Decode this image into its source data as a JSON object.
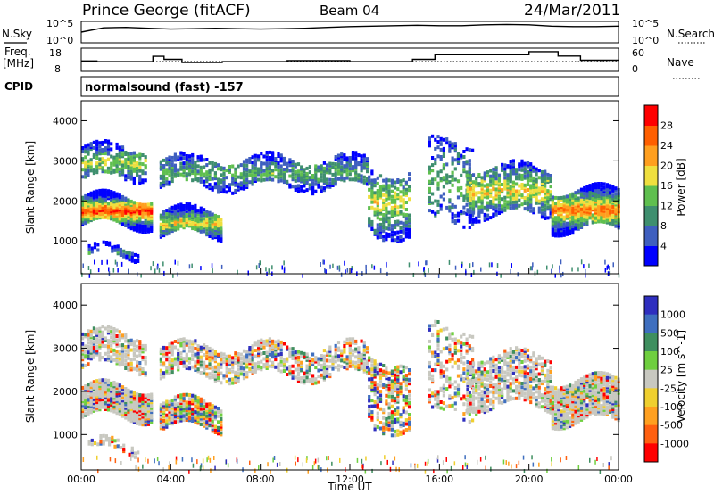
{
  "header": {
    "station": "Prince George (fitACF)",
    "beam": "Beam 04",
    "date": "24/Mar/2011"
  },
  "noise_panel": {
    "left_label": "N.Sky",
    "left_ticks": [
      "10^5",
      "10^0"
    ],
    "right_label": "N.Search",
    "right_ticks": [
      "10^5",
      "10^0"
    ]
  },
  "freq_panel": {
    "left_label_1": "Freq.",
    "left_label_2": "[MHz]",
    "left_ticks": [
      "18",
      "8"
    ],
    "right_label": "Nave",
    "right_ticks": [
      "60",
      "0"
    ]
  },
  "cpid": {
    "label": "CPID",
    "value": "normalsound (fast) -157"
  },
  "colors": {
    "power_scale": [
      "#0000ff",
      "#3f5fbf",
      "#3f8f6f",
      "#5fbf4f",
      "#efdf3f",
      "#ff9f1f",
      "#ff5f00",
      "#ff0000"
    ],
    "velocity_scale": [
      "#2f2fbf",
      "#3f6fbf",
      "#3f8f5f",
      "#6fcf3f",
      "#c8c8c0",
      "#efcf2f",
      "#ffa020",
      "#ff6010",
      "#ff0000"
    ]
  },
  "chart_data": [
    {
      "type": "line",
      "title": "Prince George (fitACF) Beam 04 24/Mar/2011",
      "series": [
        {
          "name": "N.Sky",
          "x": [
            0,
            1,
            2,
            3,
            4,
            5,
            6,
            7,
            8,
            9,
            10,
            11,
            12,
            13,
            14,
            15,
            16,
            17,
            18,
            19,
            20,
            21,
            22,
            23,
            24
          ],
          "values": [
            2.5,
            3.5,
            3.6,
            3.4,
            3.2,
            3.3,
            3.4,
            3.3,
            3.2,
            3.3,
            3.4,
            3.6,
            3.8,
            3.9,
            4.0,
            4.1,
            4.0,
            4.0,
            4.2,
            4.3,
            4.2,
            3.9,
            3.8,
            3.8,
            3.9
          ]
        }
      ],
      "ylabel": "N.Sky",
      "ylim": [
        0,
        5
      ]
    },
    {
      "type": "line",
      "series": [
        {
          "name": "Freq.",
          "x": [
            0,
            0.7,
            0.7,
            3.2,
            3.2,
            3.7,
            3.7,
            4.5,
            4.5,
            6.3,
            6.3,
            9.2,
            9.2,
            12.0,
            12.0,
            14.8,
            14.8,
            15.8,
            15.8,
            20.0,
            20.0,
            21.3,
            21.3,
            22.3,
            22.3,
            24
          ],
          "values": [
            12.5,
            12.5,
            12.2,
            12.2,
            14.5,
            14.5,
            13.2,
            13.2,
            11.8,
            11.8,
            12.2,
            12.2,
            12.6,
            12.6,
            12.2,
            12.2,
            13.2,
            13.2,
            15.2,
            15.2,
            16.5,
            16.5,
            14.6,
            14.6,
            12.8,
            12.8
          ]
        }
      ],
      "ylabel": "Freq. [MHz]",
      "ylim": [
        8,
        18
      ],
      "right_axis": {
        "label": "Nave",
        "range": [
          0,
          60
        ]
      }
    },
    {
      "type": "heatmap",
      "x_range": [
        0,
        24
      ],
      "x_ticks": [
        "00:00",
        "04:00",
        "08:00",
        "12:00",
        "16:00",
        "20:00",
        "00:00"
      ],
      "xlabel": "Time UT",
      "ylabel": "Slant Range [km]",
      "ylim": [
        180,
        4500
      ],
      "y_ticks": [
        1000,
        2000,
        3000,
        4000
      ],
      "colorbar_label": "Power [dB]",
      "colorbar_ticks": [
        4,
        8,
        12,
        16,
        20,
        24,
        28
      ],
      "colorbar_range": [
        0,
        32
      ]
    },
    {
      "type": "heatmap",
      "x_range": [
        0,
        24
      ],
      "x_ticks": [
        "00:00",
        "04:00",
        "08:00",
        "12:00",
        "16:00",
        "20:00",
        "00:00"
      ],
      "xlabel": "Time UT",
      "ylabel": "Slant Range [km]",
      "ylim": [
        180,
        4500
      ],
      "y_ticks": [
        1000,
        2000,
        3000,
        4000
      ],
      "colorbar_label": "Velocity [m s^-1]",
      "colorbar_ticks": [
        "1000",
        "500",
        "100",
        "25",
        "-25",
        "-100",
        "-500",
        "-1000"
      ]
    }
  ]
}
